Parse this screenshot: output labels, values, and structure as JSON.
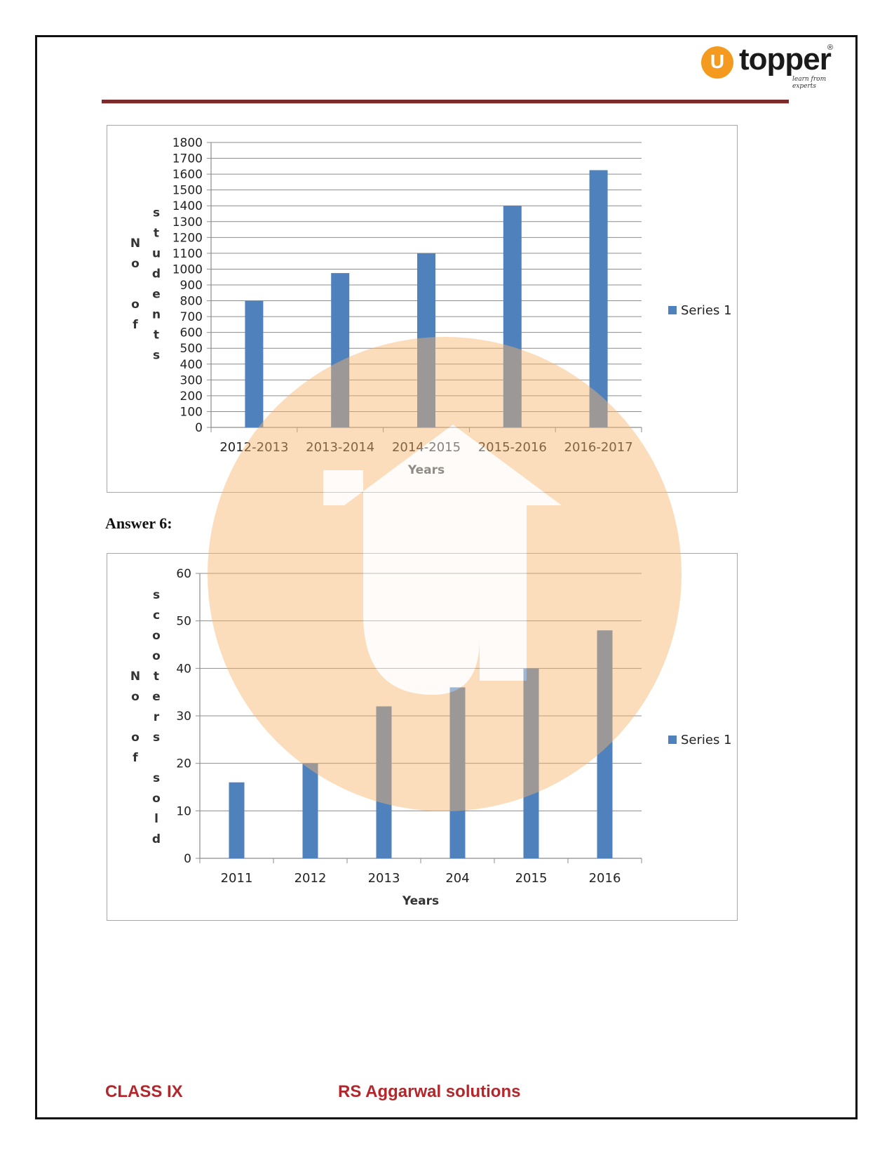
{
  "brand": {
    "logo_mark": "U",
    "name": "topper",
    "tagline": "learn from experts",
    "reg": "®"
  },
  "answer_heading": "Answer 6:",
  "footer": {
    "left": "CLASS IX",
    "right": "RS Aggarwal solutions"
  },
  "colors": {
    "bar": "#4f81bd",
    "rule": "#7a2a2a",
    "footer": "#b3262b",
    "watermark": "#f7b46a"
  },
  "chart_data": [
    {
      "type": "bar",
      "categories": [
        "2012-2013",
        "2013-2014",
        "2014-2015",
        "2015-2016",
        "2016-2017"
      ],
      "series": [
        {
          "name": "Series 1",
          "values": [
            800,
            975,
            1100,
            1400,
            1625
          ]
        }
      ],
      "xlabel": "Years",
      "ylabel": "No of students",
      "ylabel_lines": [
        [
          "N",
          "o",
          "",
          "o",
          "f"
        ],
        [
          "s",
          "t",
          "u",
          "d",
          "e",
          "n",
          "t",
          "s"
        ]
      ],
      "ylim": [
        0,
        1800
      ],
      "yticks": [
        0,
        100,
        200,
        300,
        400,
        500,
        600,
        700,
        800,
        900,
        1000,
        1100,
        1200,
        1300,
        1400,
        1500,
        1600,
        1700,
        1800
      ],
      "grid": true,
      "legend": "right"
    },
    {
      "type": "bar",
      "categories": [
        "2011",
        "2012",
        "2013",
        "204",
        "2015",
        "2016"
      ],
      "series": [
        {
          "name": "Series 1",
          "values": [
            16,
            20,
            32,
            36,
            40,
            48
          ]
        }
      ],
      "xlabel": "Years",
      "ylabel": "No of scooters sold",
      "ylabel_lines": [
        [
          "N",
          "o",
          "",
          "o",
          "f"
        ],
        [
          "s",
          "c",
          "o",
          "o",
          "t",
          "e",
          "r",
          "s",
          "",
          "s",
          "o",
          "l",
          "d"
        ]
      ],
      "ylim": [
        0,
        60
      ],
      "yticks": [
        0,
        10,
        20,
        30,
        40,
        50,
        60
      ],
      "grid": true,
      "legend": "right"
    }
  ]
}
